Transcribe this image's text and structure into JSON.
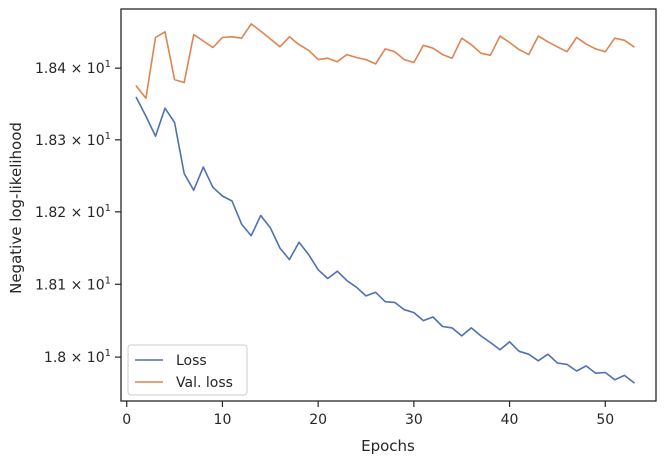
{
  "chart_data": {
    "type": "line",
    "xlabel": "Epochs",
    "ylabel": "Negative log-likelihood",
    "xlim": [
      -0.6,
      55.3
    ],
    "ylim": [
      17.94,
      18.483
    ],
    "y_scale": "log",
    "x_ticks": [
      0,
      10,
      20,
      30,
      40,
      50
    ],
    "x_tick_labels": [
      "0",
      "10",
      "20",
      "30",
      "40",
      "50"
    ],
    "y_ticks": [
      18.0,
      18.1,
      18.2,
      18.3,
      18.4
    ],
    "y_tick_labels": [
      {
        "mantissa": "1.8",
        "exp": "1"
      },
      {
        "mantissa": "1.81",
        "exp": "1"
      },
      {
        "mantissa": "1.82",
        "exp": "1"
      },
      {
        "mantissa": "1.83",
        "exp": "1"
      },
      {
        "mantissa": "1.84",
        "exp": "1"
      }
    ],
    "times_sign": "×",
    "tick_base": "10",
    "grid": false,
    "legend_position": "lower-left",
    "x": [
      1,
      2,
      3,
      4,
      5,
      6,
      7,
      8,
      9,
      10,
      11,
      12,
      13,
      14,
      15,
      16,
      17,
      18,
      19,
      20,
      21,
      22,
      23,
      24,
      25,
      26,
      27,
      28,
      29,
      30,
      31,
      32,
      33,
      34,
      35,
      36,
      37,
      38,
      39,
      40,
      41,
      42,
      43,
      44,
      45,
      46,
      47,
      48,
      49,
      50,
      51,
      52,
      53
    ],
    "series": [
      {
        "name": "Loss",
        "color": "#4c72b0",
        "values": [
          18.359,
          18.333,
          18.305,
          18.344,
          18.324,
          18.253,
          18.23,
          18.262,
          18.234,
          18.222,
          18.215,
          18.183,
          18.167,
          18.195,
          18.178,
          18.15,
          18.134,
          18.158,
          18.141,
          18.12,
          18.108,
          18.118,
          18.105,
          18.096,
          18.084,
          18.089,
          18.076,
          18.075,
          18.065,
          18.061,
          18.05,
          18.055,
          18.042,
          18.04,
          18.029,
          18.04,
          18.029,
          18.02,
          18.01,
          18.021,
          18.008,
          18.004,
          17.995,
          18.004,
          17.992,
          17.99,
          17.981,
          17.988,
          17.978,
          17.979,
          17.969,
          17.975,
          17.965
        ]
      },
      {
        "name": "Val. loss",
        "color": "#dd8452",
        "values": [
          18.375,
          18.358,
          18.443,
          18.451,
          18.384,
          18.38,
          18.447,
          18.438,
          18.429,
          18.443,
          18.444,
          18.442,
          18.462,
          18.452,
          18.441,
          18.43,
          18.444,
          18.433,
          18.425,
          18.412,
          18.414,
          18.409,
          18.419,
          18.415,
          18.412,
          18.406,
          18.427,
          18.423,
          18.412,
          18.408,
          18.432,
          18.428,
          18.419,
          18.414,
          18.442,
          18.433,
          18.421,
          18.418,
          18.445,
          18.436,
          18.426,
          18.419,
          18.445,
          18.437,
          18.43,
          18.423,
          18.443,
          18.434,
          18.427,
          18.423,
          18.442,
          18.439,
          18.43
        ]
      }
    ]
  }
}
